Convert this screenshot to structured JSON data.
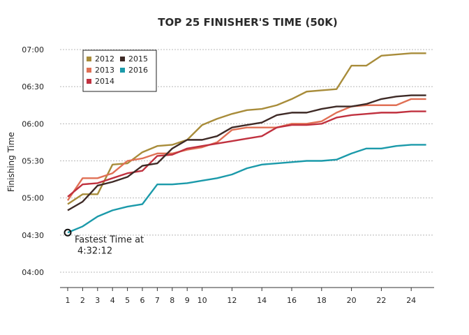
{
  "chart_data": {
    "type": "line",
    "title": "TOP 25 FINISHER'S TIME (50K)",
    "xlabel": "",
    "ylabel": "Finishing Time",
    "x": [
      1,
      2,
      3,
      4,
      5,
      6,
      7,
      8,
      9,
      10,
      11,
      12,
      13,
      14,
      15,
      16,
      17,
      18,
      19,
      20,
      21,
      22,
      23,
      24,
      25
    ],
    "x_ticks": [
      1,
      2,
      3,
      4,
      5,
      6,
      7,
      8,
      9,
      10,
      12,
      14,
      16,
      18,
      20,
      22,
      24
    ],
    "y_ticks": [
      "04:00",
      "04:30",
      "05:00",
      "05:30",
      "06:00",
      "06:30",
      "07:00"
    ],
    "ylim": [
      "04:00",
      "07:00"
    ],
    "grid": "horizontal dotted",
    "legend_position": "top-left",
    "series": [
      {
        "name": "2012",
        "color": "#a88c3a",
        "values": [
          "04:55",
          "05:03",
          "05:03",
          "05:27",
          "05:28",
          "05:37",
          "05:42",
          "05:43",
          "05:47",
          "05:59",
          "06:04",
          "06:08",
          "06:11",
          "06:12",
          "06:15",
          "06:20",
          "06:26",
          "06:27",
          "06:28",
          "06:47",
          "06:47",
          "06:55",
          "06:56",
          "06:57",
          "06:57"
        ]
      },
      {
        "name": "2013",
        "color": "#e07055",
        "values": [
          "04:58",
          "05:16",
          "05:16",
          "05:20",
          "05:30",
          "05:32",
          "05:36",
          "05:36",
          "05:39",
          "05:41",
          "05:45",
          "05:55",
          "05:57",
          "05:57",
          "05:57",
          "06:00",
          "06:00",
          "06:02",
          "06:09",
          "06:14",
          "06:15",
          "06:15",
          "06:15",
          "06:20",
          "06:20"
        ]
      },
      {
        "name": "2014",
        "color": "#c0313f",
        "values": [
          "05:01",
          "05:11",
          "05:12",
          "05:16",
          "05:20",
          "05:22",
          "05:34",
          "05:35",
          "05:40",
          "05:42",
          "05:44",
          "05:46",
          "05:48",
          "05:50",
          "05:57",
          "05:59",
          "05:59",
          "06:00",
          "06:05",
          "06:07",
          "06:08",
          "06:09",
          "06:09",
          "06:10",
          "06:10"
        ]
      },
      {
        "name": "2015",
        "color": "#3e2a26",
        "values": [
          "04:50",
          "04:57",
          "05:10",
          "05:13",
          "05:17",
          "05:26",
          "05:28",
          "05:40",
          "05:47",
          "05:47",
          "05:50",
          "05:57",
          "05:59",
          "06:01",
          "06:07",
          "06:09",
          "06:09",
          "06:12",
          "06:14",
          "06:14",
          "06:16",
          "06:20",
          "06:22",
          "06:23",
          "06:23"
        ]
      },
      {
        "name": "2016",
        "color": "#1b9aaa",
        "values": [
          "04:32",
          "04:37",
          "04:45",
          "04:50",
          "04:53",
          "04:55",
          "05:11",
          "05:11",
          "05:12",
          "05:14",
          "05:16",
          "05:19",
          "05:24",
          "05:27",
          "05:28",
          "05:29",
          "05:30",
          "05:30",
          "05:31",
          "05:36",
          "05:40",
          "05:40",
          "05:42",
          "05:43",
          "05:43"
        ]
      }
    ],
    "annotation": {
      "text_line1": "Fastest Time at",
      "text_line2": "4:32:12",
      "series": "2016",
      "x": 1,
      "y": "04:32"
    }
  }
}
